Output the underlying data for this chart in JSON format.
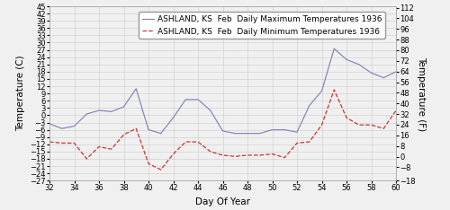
{
  "title_max": "ASHLAND, KS  Feb  Daily Maximum Temperatures 1936",
  "title_min": "ASHLAND, KS  Feb  Daily Minimum Temperatures 1936",
  "xlabel": "Day Of Year",
  "ylabel_left": "Temperature (C)",
  "ylabel_right": "Temperature (F)",
  "days": [
    32,
    33,
    34,
    35,
    36,
    37,
    38,
    39,
    40,
    41,
    42,
    43,
    44,
    45,
    46,
    47,
    48,
    49,
    50,
    51,
    52,
    53,
    54,
    55,
    56,
    57,
    58,
    59,
    60
  ],
  "max_temps_c": [
    -3.5,
    -5.5,
    -4.5,
    0.5,
    2.0,
    1.5,
    3.5,
    11.0,
    -6.0,
    -7.5,
    -1.0,
    6.5,
    6.5,
    2.0,
    -6.5,
    -7.5,
    -7.5,
    -7.5,
    -6.0,
    -6.0,
    -7.0,
    4.0,
    10.0,
    27.5,
    23.0,
    21.0,
    17.5,
    15.5,
    18.0
  ],
  "min_temps_c": [
    -11.0,
    -11.5,
    -11.5,
    -18.0,
    -13.0,
    -14.0,
    -8.0,
    -5.5,
    -20.0,
    -22.5,
    -16.0,
    -11.0,
    -11.0,
    -15.0,
    -16.5,
    -17.0,
    -16.5,
    -16.5,
    -16.0,
    -17.5,
    -11.5,
    -11.0,
    -4.0,
    10.5,
    -1.0,
    -4.0,
    -4.0,
    -5.5,
    2.0
  ],
  "color_max": "#8888bb",
  "color_min": "#cc3333",
  "xlim": [
    32,
    60
  ],
  "ylim_c": [
    -27,
    45
  ],
  "ylim_f": [
    -16.6,
    113.0
  ],
  "yticks_c": [
    -27,
    -24,
    -21,
    -18,
    -15,
    -12,
    -9,
    -6,
    -3,
    0,
    3,
    6,
    9,
    12,
    15,
    18,
    21,
    24,
    27,
    30,
    33,
    36,
    39,
    42,
    45
  ],
  "yticks_f": [
    -18,
    -8,
    0,
    8,
    16,
    24,
    32,
    40,
    48,
    56,
    64,
    72,
    80,
    88,
    96,
    104,
    112
  ],
  "xticks": [
    32,
    34,
    36,
    38,
    40,
    42,
    44,
    46,
    48,
    50,
    52,
    54,
    56,
    58,
    60
  ],
  "background_color": "#f0f0f0",
  "grid_color": "#cccccc",
  "legend_fontsize": 6.5,
  "axis_label_fontsize": 7.5,
  "tick_fontsize": 6.0
}
